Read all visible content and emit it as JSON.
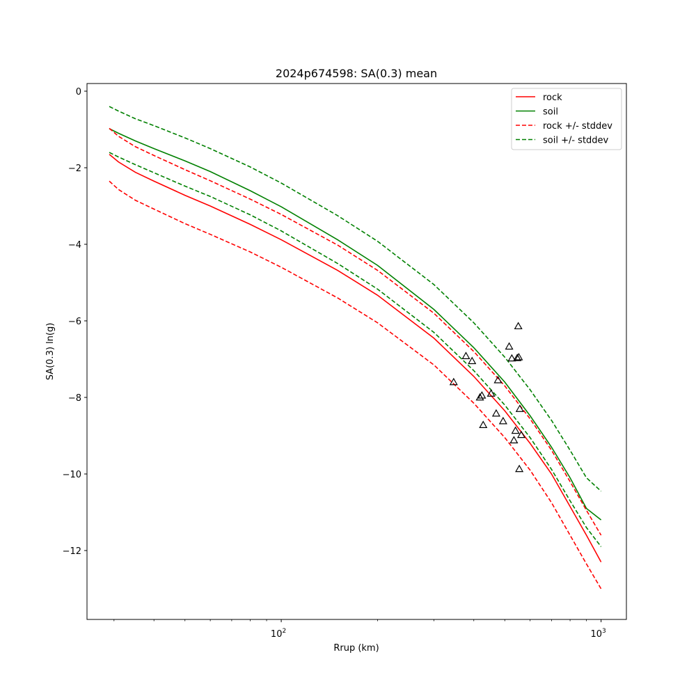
{
  "chart_data": {
    "type": "line",
    "title": "2024p674598: SA(0.3) mean",
    "xlabel": "Rrup (km)",
    "ylabel": "SA(0.3) ln(g)",
    "xscale": "log",
    "xlim": [
      24.7,
      1200
    ],
    "ylim": [
      -13.8,
      0.2
    ],
    "x_ticks": [
      {
        "value": 100,
        "base": "10",
        "exp": "2"
      },
      {
        "value": 1000,
        "base": "10",
        "exp": "3"
      }
    ],
    "y_ticks": [
      {
        "value": 0,
        "label": "0"
      },
      {
        "value": -2,
        "label": "−2"
      },
      {
        "value": -4,
        "label": "−4"
      },
      {
        "value": -6,
        "label": "−6"
      },
      {
        "value": -8,
        "label": "−8"
      },
      {
        "value": -10,
        "label": "−10"
      },
      {
        "value": -12,
        "label": "−12"
      }
    ],
    "grid": false,
    "legend_position": "top-right",
    "legend": [
      {
        "label": "rock",
        "color": "#ff0000",
        "dash": "solid"
      },
      {
        "label": "soil",
        "color": "#008000",
        "dash": "solid"
      },
      {
        "label": "rock +/- stddev",
        "color": "#ff0000",
        "dash": "dashed"
      },
      {
        "label": "soil +/- stddev",
        "color": "#008000",
        "dash": "dashed"
      }
    ],
    "x": [
      29,
      31,
      35,
      40,
      50,
      60,
      80,
      100,
      150,
      200,
      300,
      400,
      500,
      600,
      700,
      800,
      900,
      1000
    ],
    "series": [
      {
        "name": "rock",
        "color": "#ff0000",
        "dash": "solid",
        "values": [
          -1.65,
          -1.85,
          -2.12,
          -2.35,
          -2.72,
          -3.0,
          -3.48,
          -3.88,
          -4.68,
          -5.33,
          -6.45,
          -7.45,
          -8.35,
          -9.2,
          -10.0,
          -10.85,
          -11.6,
          -12.3
        ]
      },
      {
        "name": "soil",
        "color": "#008000",
        "dash": "solid",
        "values": [
          -0.98,
          -1.1,
          -1.3,
          -1.5,
          -1.82,
          -2.1,
          -2.6,
          -3.02,
          -3.88,
          -4.55,
          -5.7,
          -6.7,
          -7.6,
          -8.48,
          -9.3,
          -10.1,
          -10.9,
          -11.2
        ]
      },
      {
        "name": "rock + stddev",
        "color": "#ff0000",
        "dash": "dashed",
        "values": [
          -0.97,
          -1.18,
          -1.45,
          -1.68,
          -2.05,
          -2.34,
          -2.82,
          -3.22,
          -4.02,
          -4.68,
          -5.8,
          -6.8,
          -7.7,
          -8.56,
          -9.38,
          -10.2,
          -10.95,
          -11.6
        ]
      },
      {
        "name": "rock - stddev",
        "color": "#ff0000",
        "dash": "dashed",
        "values": [
          -2.35,
          -2.57,
          -2.85,
          -3.08,
          -3.46,
          -3.74,
          -4.2,
          -4.6,
          -5.4,
          -6.05,
          -7.15,
          -8.15,
          -9.05,
          -9.9,
          -10.75,
          -11.6,
          -12.35,
          -13.0
        ]
      },
      {
        "name": "soil + stddev",
        "color": "#008000",
        "dash": "dashed",
        "values": [
          -0.4,
          -0.52,
          -0.72,
          -0.9,
          -1.22,
          -1.5,
          -1.98,
          -2.4,
          -3.25,
          -3.92,
          -5.05,
          -6.05,
          -6.95,
          -7.8,
          -8.6,
          -9.38,
          -10.1,
          -10.45
        ]
      },
      {
        "name": "soil - stddev",
        "color": "#008000",
        "dash": "dashed",
        "values": [
          -1.6,
          -1.72,
          -1.92,
          -2.13,
          -2.48,
          -2.75,
          -3.23,
          -3.65,
          -4.5,
          -5.17,
          -6.3,
          -7.3,
          -8.2,
          -9.05,
          -9.88,
          -10.7,
          -11.4,
          -11.9
        ]
      }
    ],
    "observations": {
      "marker": "triangle",
      "color": "#000000",
      "points": [
        {
          "x": 346,
          "y": -7.6
        },
        {
          "x": 378,
          "y": -6.92
        },
        {
          "x": 395,
          "y": -7.05
        },
        {
          "x": 418,
          "y": -8.0
        },
        {
          "x": 424,
          "y": -7.95
        },
        {
          "x": 428,
          "y": -8.72
        },
        {
          "x": 453,
          "y": -7.9
        },
        {
          "x": 470,
          "y": -8.42
        },
        {
          "x": 476,
          "y": -7.55
        },
        {
          "x": 494,
          "y": -8.62
        },
        {
          "x": 516,
          "y": -6.67
        },
        {
          "x": 526,
          "y": -6.98
        },
        {
          "x": 534,
          "y": -9.12
        },
        {
          "x": 540,
          "y": -8.87
        },
        {
          "x": 547,
          "y": -6.97
        },
        {
          "x": 551,
          "y": -6.14
        },
        {
          "x": 553,
          "y": -6.95
        },
        {
          "x": 555,
          "y": -9.87
        },
        {
          "x": 557,
          "y": -8.3
        },
        {
          "x": 563,
          "y": -8.98
        }
      ]
    }
  }
}
